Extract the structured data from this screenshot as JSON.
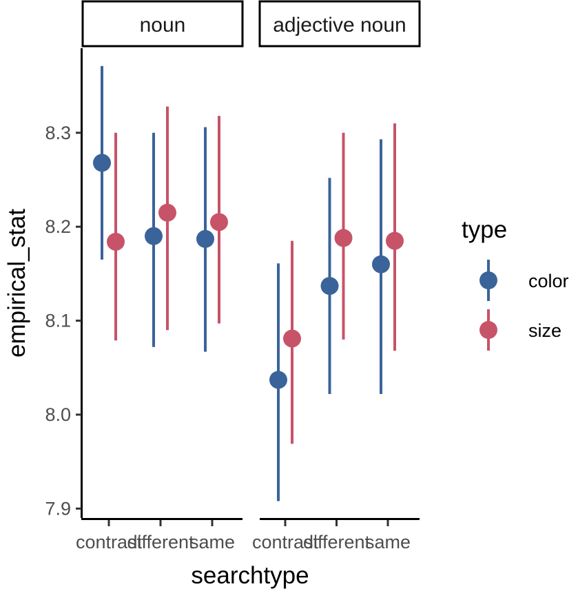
{
  "chart_data": {
    "type": "pointrange",
    "xlabel": "searchtype",
    "ylabel": "empirical_stat",
    "ylim": [
      7.89,
      8.39
    ],
    "yticks": [
      "7.9",
      "8.0",
      "8.1",
      "8.2",
      "8.3"
    ],
    "categories": [
      "contrast",
      "different",
      "same"
    ],
    "grid": false,
    "legend": {
      "title": "type",
      "position": "right",
      "entries": [
        {
          "name": "color",
          "color": "#3a6399"
        },
        {
          "name": "size",
          "color": "#c75369"
        }
      ]
    },
    "facets": [
      {
        "label": "noun",
        "series": [
          {
            "name": "color",
            "points": [
              {
                "x": "contrast",
                "y": 8.268,
                "ymin": 8.165,
                "ymax": 8.371
              },
              {
                "x": "different",
                "y": 8.19,
                "ymin": 8.072,
                "ymax": 8.3
              },
              {
                "x": "same",
                "y": 8.187,
                "ymin": 8.067,
                "ymax": 8.306
              }
            ]
          },
          {
            "name": "size",
            "points": [
              {
                "x": "contrast",
                "y": 8.184,
                "ymin": 8.079,
                "ymax": 8.3
              },
              {
                "x": "different",
                "y": 8.215,
                "ymin": 8.09,
                "ymax": 8.328
              },
              {
                "x": "same",
                "y": 8.205,
                "ymin": 8.097,
                "ymax": 8.318
              }
            ]
          }
        ]
      },
      {
        "label": "adjective noun",
        "series": [
          {
            "name": "color",
            "points": [
              {
                "x": "contrast",
                "y": 8.037,
                "ymin": 7.908,
                "ymax": 8.161
              },
              {
                "x": "different",
                "y": 8.137,
                "ymin": 8.022,
                "ymax": 8.252
              },
              {
                "x": "same",
                "y": 8.16,
                "ymin": 8.022,
                "ymax": 8.293
              }
            ]
          },
          {
            "name": "size",
            "points": [
              {
                "x": "contrast",
                "y": 8.081,
                "ymin": 7.969,
                "ymax": 8.185
              },
              {
                "x": "different",
                "y": 8.188,
                "ymin": 8.08,
                "ymax": 8.3
              },
              {
                "x": "same",
                "y": 8.185,
                "ymin": 8.068,
                "ymax": 8.31
              }
            ]
          }
        ]
      }
    ]
  }
}
